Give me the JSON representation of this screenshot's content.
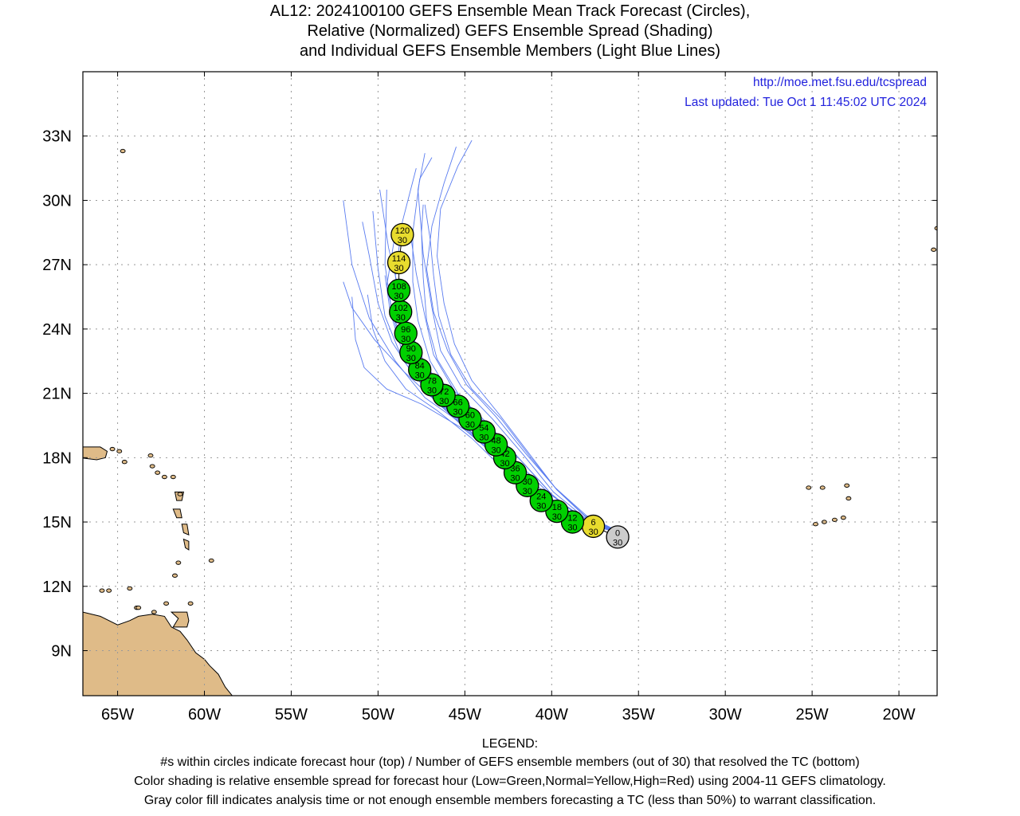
{
  "title_lines": [
    "AL12: 2024100100 GEFS Ensemble Mean Track Forecast (Circles),",
    "Relative (Normalized) GEFS Ensemble Spread (Shading)",
    "and Individual GEFS Ensemble Members (Light Blue Lines)"
  ],
  "credit": {
    "url": "http://moe.met.fsu.edu/tcspread",
    "updated": "Last updated: Tue Oct 1 11:45:02 UTC 2024"
  },
  "legend": {
    "heading": "LEGEND:",
    "lines": [
      "#s within circles indicate forecast hour (top) / Number of GEFS ensemble members (out of 30) that resolved the TC (bottom)",
      "Color shading is relative ensemble spread for forecast hour (Low=Green,Normal=Yellow,High=Red) using 2004-11 GEFS climatology.",
      "Gray color fill indicates analysis time or not enough ensemble members forecasting a TC (less than 50%) to warrant classification."
    ]
  },
  "axes": {
    "lon_ticks": [
      {
        "lon": -65,
        "label": "65W"
      },
      {
        "lon": -60,
        "label": "60W"
      },
      {
        "lon": -55,
        "label": "55W"
      },
      {
        "lon": -50,
        "label": "50W"
      },
      {
        "lon": -45,
        "label": "45W"
      },
      {
        "lon": -40,
        "label": "40W"
      },
      {
        "lon": -35,
        "label": "35W"
      },
      {
        "lon": -30,
        "label": "30W"
      },
      {
        "lon": -25,
        "label": "25W"
      },
      {
        "lon": -20,
        "label": "20W"
      }
    ],
    "lat_ticks": [
      {
        "lat": 9,
        "label": "9N"
      },
      {
        "lat": 12,
        "label": "12N"
      },
      {
        "lat": 15,
        "label": "15N"
      },
      {
        "lat": 18,
        "label": "18N"
      },
      {
        "lat": 21,
        "label": "21N"
      },
      {
        "lat": 24,
        "label": "24N"
      },
      {
        "lat": 27,
        "label": "27N"
      },
      {
        "lat": 30,
        "label": "30N"
      },
      {
        "lat": 33,
        "label": "33N"
      }
    ],
    "lon_range": [
      -67.0,
      -17.8
    ],
    "lat_range": [
      6.9,
      36.0
    ],
    "grid": "dotted"
  },
  "colors": {
    "low_spread": "#00d000",
    "normal_spread": "#e8dc2e",
    "analysis": "#cccccc",
    "member_line": "#5a7cf0",
    "land": "#dfbb88",
    "credit_text": "#2222dd"
  },
  "track": [
    {
      "hour": "0",
      "members": "30",
      "lon": -36.2,
      "lat": 14.3,
      "spread": "analysis"
    },
    {
      "hour": "6",
      "members": "30",
      "lon": -37.6,
      "lat": 14.8,
      "spread": "normal"
    },
    {
      "hour": "12",
      "members": "30",
      "lon": -38.8,
      "lat": 15.0,
      "spread": "low"
    },
    {
      "hour": "18",
      "members": "30",
      "lon": -39.7,
      "lat": 15.5,
      "spread": "low"
    },
    {
      "hour": "24",
      "members": "30",
      "lon": -40.6,
      "lat": 16.0,
      "spread": "low"
    },
    {
      "hour": "30",
      "members": "30",
      "lon": -41.4,
      "lat": 16.7,
      "spread": "low"
    },
    {
      "hour": "36",
      "members": "30",
      "lon": -42.1,
      "lat": 17.3,
      "spread": "low"
    },
    {
      "hour": "42",
      "members": "30",
      "lon": -42.7,
      "lat": 18.0,
      "spread": "low"
    },
    {
      "hour": "48",
      "members": "30",
      "lon": -43.2,
      "lat": 18.6,
      "spread": "low"
    },
    {
      "hour": "54",
      "members": "30",
      "lon": -43.9,
      "lat": 19.2,
      "spread": "low"
    },
    {
      "hour": "60",
      "members": "30",
      "lon": -44.7,
      "lat": 19.8,
      "spread": "low"
    },
    {
      "hour": "66",
      "members": "30",
      "lon": -45.4,
      "lat": 20.4,
      "spread": "low"
    },
    {
      "hour": "72",
      "members": "30",
      "lon": -46.2,
      "lat": 20.9,
      "spread": "low"
    },
    {
      "hour": "78",
      "members": "30",
      "lon": -46.9,
      "lat": 21.4,
      "spread": "low"
    },
    {
      "hour": "84",
      "members": "30",
      "lon": -47.6,
      "lat": 22.1,
      "spread": "low"
    },
    {
      "hour": "90",
      "members": "30",
      "lon": -48.1,
      "lat": 22.9,
      "spread": "low"
    },
    {
      "hour": "96",
      "members": "30",
      "lon": -48.4,
      "lat": 23.8,
      "spread": "low"
    },
    {
      "hour": "102",
      "members": "30",
      "lon": -48.7,
      "lat": 24.8,
      "spread": "low"
    },
    {
      "hour": "108",
      "members": "30",
      "lon": -48.8,
      "lat": 25.8,
      "spread": "low"
    },
    {
      "hour": "114",
      "members": "30",
      "lon": -48.8,
      "lat": 27.1,
      "spread": "normal"
    },
    {
      "hour": "120",
      "members": "30",
      "lon": -48.6,
      "lat": 28.4,
      "spread": "normal"
    }
  ],
  "members": [
    [
      [
        -36.0,
        14.5
      ],
      [
        -38.5,
        15.1
      ],
      [
        -40.5,
        16.0
      ],
      [
        -42.5,
        17.5
      ],
      [
        -44.5,
        19.0
      ],
      [
        -46.5,
        20.5
      ],
      [
        -48.5,
        22.0
      ],
      [
        -50.2,
        23.5
      ],
      [
        -51.5,
        25.0
      ],
      [
        -52.0,
        26.2
      ]
    ],
    [
      [
        -36.0,
        14.5
      ],
      [
        -38.6,
        15.0
      ],
      [
        -40.8,
        16.1
      ],
      [
        -42.8,
        17.8
      ],
      [
        -45.0,
        19.3
      ],
      [
        -47.5,
        20.5
      ],
      [
        -49.5,
        21.2
      ],
      [
        -50.8,
        22.2
      ],
      [
        -51.3,
        23.5
      ],
      [
        -51.5,
        25.5
      ]
    ],
    [
      [
        -36.0,
        14.5
      ],
      [
        -38.7,
        15.0
      ],
      [
        -40.7,
        16.3
      ],
      [
        -43.0,
        18.0
      ],
      [
        -45.2,
        19.6
      ],
      [
        -47.3,
        20.8
      ],
      [
        -49.0,
        22.5
      ],
      [
        -50.5,
        24.5
      ],
      [
        -51.5,
        27.0
      ],
      [
        -52.0,
        30.0
      ]
    ],
    [
      [
        -36.0,
        14.5
      ],
      [
        -38.5,
        15.2
      ],
      [
        -40.6,
        16.4
      ],
      [
        -42.7,
        18.0
      ],
      [
        -44.9,
        19.5
      ],
      [
        -47.0,
        20.9
      ],
      [
        -48.6,
        22.6
      ],
      [
        -49.6,
        24.6
      ],
      [
        -50.0,
        26.8
      ],
      [
        -50.3,
        29.5
      ]
    ],
    [
      [
        -36.0,
        14.5
      ],
      [
        -38.4,
        15.1
      ],
      [
        -40.5,
        16.2
      ],
      [
        -42.6,
        17.9
      ],
      [
        -44.7,
        19.5
      ],
      [
        -46.8,
        21.0
      ],
      [
        -48.3,
        22.8
      ],
      [
        -49.2,
        24.8
      ],
      [
        -49.6,
        27.0
      ],
      [
        -49.5,
        30.5
      ]
    ],
    [
      [
        -36.0,
        14.5
      ],
      [
        -38.3,
        15.0
      ],
      [
        -40.3,
        16.1
      ],
      [
        -42.2,
        17.6
      ],
      [
        -44.3,
        19.3
      ],
      [
        -46.3,
        20.8
      ],
      [
        -47.8,
        22.4
      ],
      [
        -48.7,
        24.3
      ],
      [
        -49.0,
        26.5
      ],
      [
        -48.6,
        29.0
      ],
      [
        -47.8,
        31.5
      ]
    ],
    [
      [
        -36.0,
        14.5
      ],
      [
        -38.4,
        15.0
      ],
      [
        -40.4,
        16.0
      ],
      [
        -42.4,
        17.4
      ],
      [
        -44.5,
        19.1
      ],
      [
        -46.6,
        20.6
      ],
      [
        -48.2,
        22.3
      ],
      [
        -49.0,
        24.2
      ],
      [
        -49.5,
        26.0
      ],
      [
        -49.0,
        28.5
      ]
    ],
    [
      [
        -36.0,
        14.5
      ],
      [
        -38.2,
        15.1
      ],
      [
        -40.0,
        16.3
      ],
      [
        -41.8,
        17.9
      ],
      [
        -43.7,
        19.6
      ],
      [
        -45.6,
        21.1
      ],
      [
        -46.8,
        22.8
      ],
      [
        -47.3,
        24.6
      ],
      [
        -47.8,
        26.6
      ],
      [
        -48.2,
        28.8
      ]
    ],
    [
      [
        -36.0,
        14.5
      ],
      [
        -38.1,
        15.2
      ],
      [
        -39.9,
        16.4
      ],
      [
        -41.6,
        18.1
      ],
      [
        -43.4,
        19.8
      ],
      [
        -45.2,
        21.3
      ],
      [
        -46.4,
        23.0
      ],
      [
        -46.9,
        25.0
      ],
      [
        -47.4,
        27.5
      ],
      [
        -47.7,
        30.5
      ],
      [
        -47.3,
        32.2
      ]
    ],
    [
      [
        -36.0,
        14.5
      ],
      [
        -38.0,
        15.3
      ],
      [
        -39.8,
        16.6
      ],
      [
        -41.4,
        18.3
      ],
      [
        -43.0,
        20.0
      ],
      [
        -44.6,
        21.6
      ],
      [
        -45.6,
        23.3
      ],
      [
        -46.2,
        25.2
      ],
      [
        -46.6,
        27.4
      ],
      [
        -46.4,
        29.6
      ],
      [
        -45.4,
        31.6
      ],
      [
        -44.6,
        32.8
      ]
    ],
    [
      [
        -36.0,
        14.5
      ],
      [
        -38.1,
        15.3
      ],
      [
        -39.8,
        16.6
      ],
      [
        -41.5,
        18.2
      ],
      [
        -43.2,
        19.9
      ],
      [
        -44.9,
        21.4
      ],
      [
        -46.0,
        23.0
      ],
      [
        -46.8,
        24.8
      ],
      [
        -47.2,
        26.8
      ],
      [
        -46.9,
        28.8
      ],
      [
        -46.2,
        30.8
      ],
      [
        -45.5,
        32.5
      ]
    ],
    [
      [
        -36.0,
        14.5
      ],
      [
        -38.2,
        15.2
      ],
      [
        -40.1,
        16.3
      ],
      [
        -42.0,
        17.8
      ],
      [
        -43.9,
        19.4
      ],
      [
        -45.8,
        20.9
      ],
      [
        -47.0,
        22.5
      ],
      [
        -47.7,
        24.4
      ],
      [
        -48.0,
        26.2
      ],
      [
        -48.0,
        28.5
      ],
      [
        -47.6,
        31.0
      ],
      [
        -46.9,
        32.0
      ]
    ],
    [
      [
        -36.0,
        14.5
      ],
      [
        -38.3,
        15.1
      ],
      [
        -40.2,
        16.2
      ],
      [
        -42.1,
        17.7
      ],
      [
        -44.0,
        19.3
      ],
      [
        -45.9,
        20.8
      ],
      [
        -47.3,
        22.4
      ],
      [
        -48.2,
        24.0
      ],
      [
        -48.8,
        25.8
      ],
      [
        -49.4,
        27.8
      ],
      [
        -49.9,
        30.5
      ]
    ],
    [
      [
        -36.0,
        14.5
      ],
      [
        -38.0,
        15.2
      ],
      [
        -39.7,
        16.5
      ],
      [
        -41.3,
        18.1
      ],
      [
        -42.9,
        19.8
      ],
      [
        -44.6,
        21.2
      ],
      [
        -45.8,
        22.8
      ],
      [
        -46.5,
        24.6
      ],
      [
        -46.8,
        26.5
      ],
      [
        -47.0,
        28.2
      ],
      [
        -47.3,
        29.8
      ]
    ],
    [
      [
        -36.0,
        14.5
      ],
      [
        -38.3,
        15.0
      ],
      [
        -40.3,
        15.9
      ],
      [
        -42.3,
        17.2
      ],
      [
        -44.2,
        18.8
      ],
      [
        -46.0,
        20.3
      ],
      [
        -47.6,
        21.7
      ],
      [
        -48.7,
        23.2
      ],
      [
        -49.3,
        24.8
      ],
      [
        -49.6,
        26.5
      ]
    ],
    [
      [
        -36.0,
        14.5
      ],
      [
        -38.5,
        15.0
      ],
      [
        -40.6,
        15.9
      ],
      [
        -42.7,
        17.4
      ],
      [
        -44.6,
        18.9
      ],
      [
        -46.6,
        20.2
      ],
      [
        -48.4,
        21.2
      ],
      [
        -49.6,
        22.5
      ],
      [
        -50.3,
        24.0
      ],
      [
        -50.6,
        25.6
      ]
    ],
    [
      [
        -36.0,
        14.5
      ],
      [
        -38.4,
        15.1
      ],
      [
        -40.4,
        16.1
      ],
      [
        -42.4,
        17.6
      ],
      [
        -44.5,
        19.2
      ],
      [
        -46.5,
        20.6
      ],
      [
        -48.0,
        21.9
      ],
      [
        -49.2,
        23.4
      ],
      [
        -50.0,
        25.2
      ],
      [
        -50.5,
        27.4
      ],
      [
        -50.9,
        29.0
      ]
    ],
    [
      [
        -36.0,
        14.5
      ],
      [
        -38.1,
        15.1
      ],
      [
        -39.9,
        16.2
      ],
      [
        -41.7,
        17.8
      ],
      [
        -43.6,
        19.4
      ],
      [
        -45.4,
        21.0
      ],
      [
        -46.6,
        22.6
      ],
      [
        -47.2,
        24.4
      ],
      [
        -47.4,
        26.4
      ],
      [
        -47.5,
        28.5
      ],
      [
        -47.4,
        29.8
      ]
    ]
  ],
  "land": [
    [
      [
        -67.0,
        10.8
      ],
      [
        -66.0,
        10.6
      ],
      [
        -65.0,
        10.2
      ],
      [
        -64.3,
        10.4
      ],
      [
        -63.8,
        10.6
      ],
      [
        -63.0,
        10.7
      ],
      [
        -62.3,
        10.6
      ],
      [
        -61.9,
        10.1
      ],
      [
        -61.4,
        9.9
      ],
      [
        -61.0,
        9.5
      ],
      [
        -60.5,
        8.9
      ],
      [
        -60.0,
        8.6
      ],
      [
        -59.7,
        8.3
      ],
      [
        -59.2,
        7.9
      ],
      [
        -58.8,
        7.3
      ],
      [
        -58.4,
        6.9
      ],
      [
        -67.0,
        6.9
      ]
    ],
    [
      [
        -67.2,
        18.5
      ],
      [
        -66.0,
        18.5
      ],
      [
        -65.6,
        18.3
      ],
      [
        -65.7,
        18.0
      ],
      [
        -66.2,
        17.9
      ],
      [
        -67.2,
        18.0
      ]
    ],
    [
      [
        -61.9,
        10.8
      ],
      [
        -61.0,
        10.8
      ],
      [
        -60.9,
        10.4
      ],
      [
        -61.0,
        10.1
      ],
      [
        -61.8,
        10.1
      ],
      [
        -61.5,
        10.5
      ]
    ],
    [
      [
        -61.8,
        15.6
      ],
      [
        -61.4,
        15.6
      ],
      [
        -61.3,
        15.2
      ],
      [
        -61.6,
        15.2
      ]
    ],
    [
      [
        -61.3,
        14.9
      ],
      [
        -61.0,
        14.9
      ],
      [
        -60.9,
        14.4
      ],
      [
        -61.2,
        14.5
      ]
    ],
    [
      [
        -61.2,
        14.2
      ],
      [
        -60.9,
        14.1
      ],
      [
        -60.9,
        13.7
      ],
      [
        -61.1,
        13.8
      ]
    ],
    [
      [
        -61.7,
        16.4
      ],
      [
        -61.2,
        16.4
      ],
      [
        -61.3,
        16.0
      ],
      [
        -61.6,
        16.0
      ]
    ]
  ],
  "islands": [
    [
      -64.7,
      32.3
    ],
    [
      -65.3,
      18.4
    ],
    [
      -64.9,
      18.3
    ],
    [
      -64.6,
      17.8
    ],
    [
      -63.1,
      18.1
    ],
    [
      -63.0,
      17.6
    ],
    [
      -62.7,
      17.3
    ],
    [
      -62.3,
      17.1
    ],
    [
      -61.8,
      17.1
    ],
    [
      -61.4,
      16.3
    ],
    [
      -61.5,
      13.1
    ],
    [
      -61.7,
      12.5
    ],
    [
      -59.6,
      13.2
    ],
    [
      -63.9,
      11.0
    ],
    [
      -65.5,
      11.8
    ],
    [
      -65.9,
      11.8
    ],
    [
      -64.3,
      11.9
    ],
    [
      -63.8,
      11.0
    ],
    [
      -62.9,
      10.8
    ],
    [
      -62.2,
      11.2
    ],
    [
      -60.8,
      11.2
    ],
    [
      -25.2,
      16.6
    ],
    [
      -24.4,
      16.6
    ],
    [
      -23.0,
      16.7
    ],
    [
      -22.9,
      16.1
    ],
    [
      -24.8,
      14.9
    ],
    [
      -24.3,
      15.0
    ],
    [
      -23.7,
      15.1
    ],
    [
      -23.2,
      15.2
    ],
    [
      -17.8,
      28.7
    ],
    [
      -18.0,
      27.7
    ],
    [
      -16.9,
      32.7
    ]
  ]
}
